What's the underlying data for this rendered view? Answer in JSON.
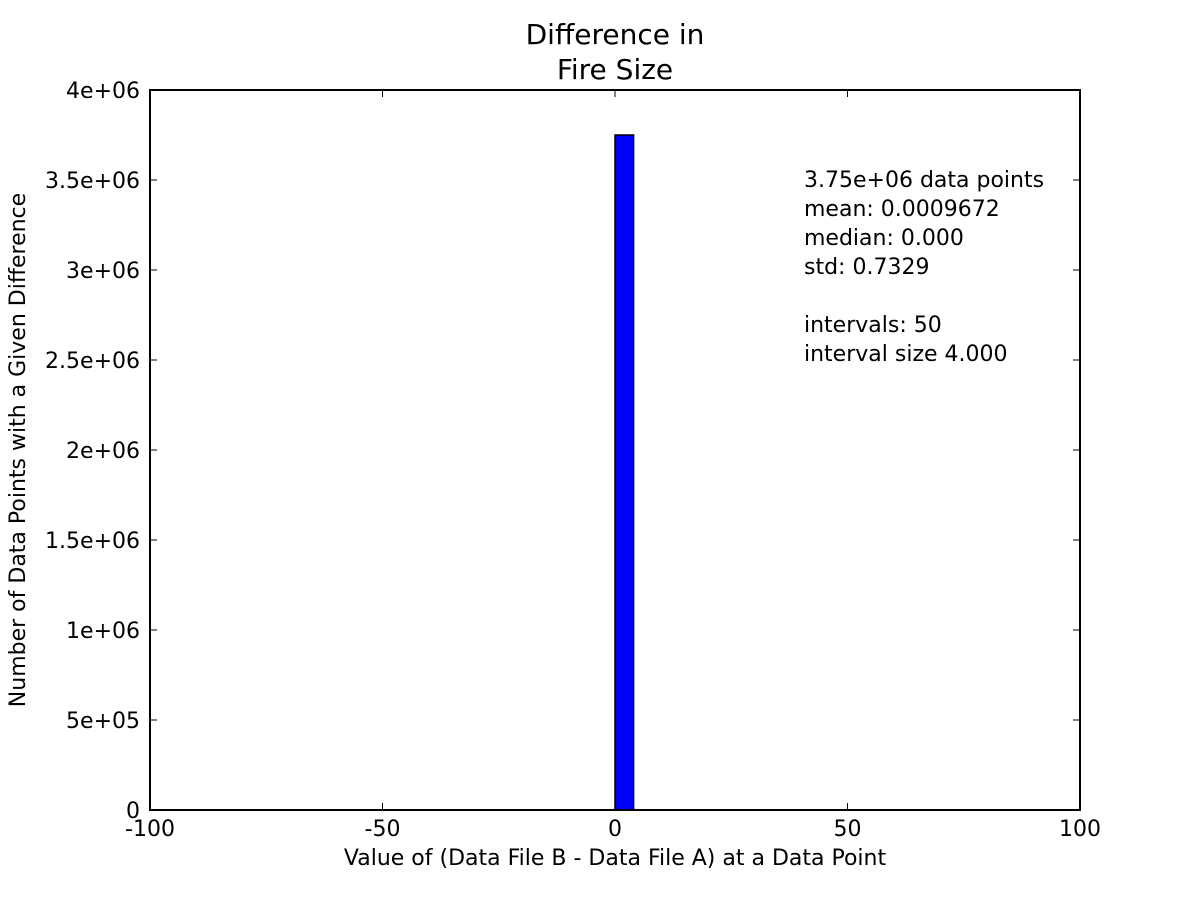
{
  "chart_data": {
    "type": "bar",
    "title_lines": [
      "Difference in",
      "Fire Size"
    ],
    "xlabel": "Value of (Data File B - Data File A) at a Data Point",
    "ylabel": "Number of Data Points with a Given Difference",
    "xlim": [
      -100,
      100
    ],
    "ylim": [
      0,
      4000000
    ],
    "x_ticks": [
      -100,
      -50,
      0,
      50,
      100
    ],
    "x_tick_labels": [
      "-100",
      "-50",
      "0",
      "50",
      "100"
    ],
    "y_ticks": [
      0,
      500000,
      1000000,
      1500000,
      2000000,
      2500000,
      3000000,
      3500000,
      4000000
    ],
    "y_tick_labels": [
      "0",
      "5e+05",
      "1e+06",
      "1.5e+06",
      "2e+06",
      "2.5e+06",
      "3e+06",
      "3.5e+06",
      "4e+06"
    ],
    "bars": [
      {
        "x_start": 0,
        "x_end": 4,
        "value": 3750000
      }
    ],
    "bar_color": "#0000ff",
    "grid": false,
    "annotation_lines": [
      "3.75e+06 data points",
      "mean: 0.0009672",
      "median: 0.000",
      "std: 0.7329",
      "",
      "intervals: 50",
      "interval size 4.000"
    ]
  }
}
